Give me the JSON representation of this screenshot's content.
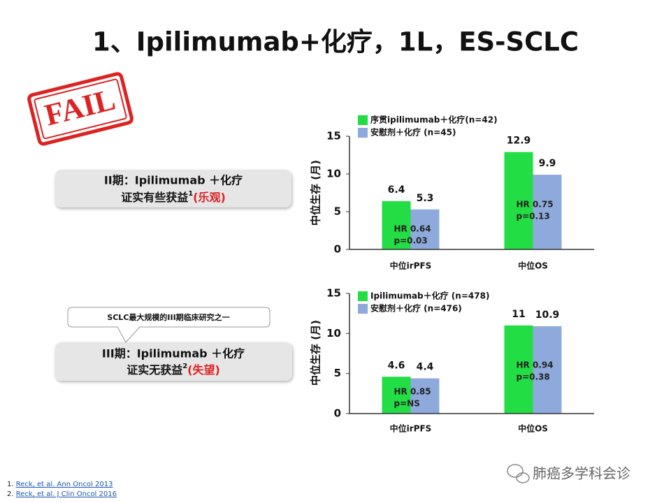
{
  "title": "1、Ipilimumab+化疗，1L，ES-SCLC",
  "stamp": "FAIL",
  "boxes": [
    {
      "line1": "II期：Ipilimumab ＋化疗",
      "line2": "证实有些获益",
      "sup": "1",
      "note": "(乐观)"
    },
    {
      "line1": "III期：Ipilimumab ＋化疗",
      "line2": "证实无获益",
      "sup": "2",
      "note": "(失望)"
    }
  ],
  "callout": "SCLC最大规模的III期临床研究之一",
  "references": [
    {
      "number": "1.",
      "text": "Reck, et al. Ann Oncol 2013"
    },
    {
      "number": "2.",
      "text": "Reck, et al. J Clin Oncol 2016"
    }
  ],
  "watermark": "肺癌多学科会诊",
  "chart_data": [
    {
      "type": "bar",
      "y_label": "中位生存 (月)",
      "categories": [
        "中位irPFS",
        "中位OS"
      ],
      "series": [
        {
          "name": "序贯ipilimumab＋化疗(n=42)",
          "color": "#22dd44",
          "values": [
            6.4,
            12.9
          ]
        },
        {
          "name": "安慰剂＋化疗 (n=45)",
          "color": "#8eaadc",
          "values": [
            5.3,
            9.9
          ]
        }
      ],
      "annotations": [
        [
          "HR 0.64",
          "p=0.03"
        ],
        [
          "HR 0.75",
          "p=0.13"
        ]
      ],
      "ylim": [
        0,
        15
      ],
      "yticks": [
        0,
        5,
        10,
        15
      ],
      "grid": false
    },
    {
      "type": "bar",
      "y_label": "中位生存 (月)",
      "categories": [
        "中位irPFS",
        "中位OS"
      ],
      "series": [
        {
          "name": "Ipilimumab＋化疗 (n=478)",
          "color": "#22dd44",
          "values": [
            4.6,
            11
          ]
        },
        {
          "name": "安慰剂＋化疗 (n=476)",
          "color": "#8eaadc",
          "values": [
            4.4,
            10.9
          ]
        }
      ],
      "annotations": [
        [
          "HR 0.85",
          "p=NS"
        ],
        [
          "HR 0.94",
          "p=0.38"
        ]
      ],
      "ylim": [
        0,
        15
      ],
      "yticks": [
        0,
        5,
        10,
        15
      ],
      "grid": false
    }
  ]
}
